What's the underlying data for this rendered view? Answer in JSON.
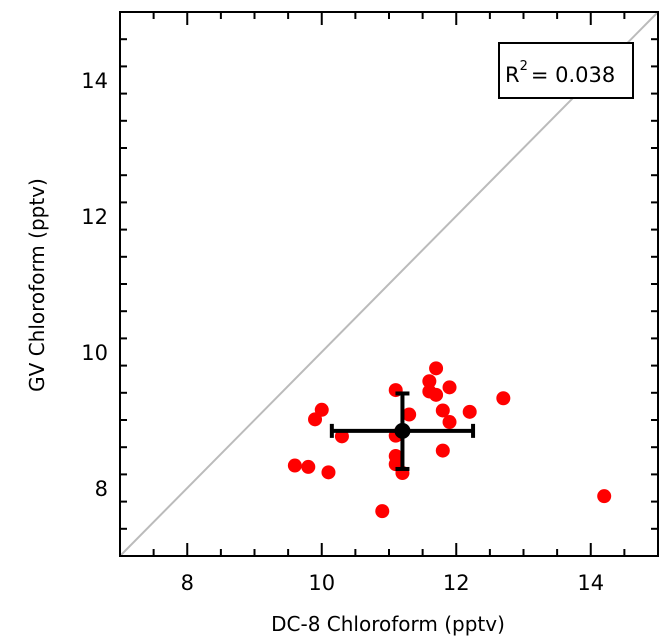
{
  "chart_data": {
    "type": "scatter",
    "xlabel": "DC-8 Chloroform (pptv)",
    "ylabel": "GV Chloroform (pptv)",
    "xlim": [
      7,
      15
    ],
    "ylim": [
      7,
      15
    ],
    "xticks": [
      8,
      10,
      12,
      14
    ],
    "yticks": [
      8,
      10,
      12,
      14
    ],
    "x_minor_step": 0.5,
    "y_minor_step": 0.4,
    "grid": false,
    "one_to_one_line": true,
    "annotation": {
      "r_text": "R",
      "r_exp": "2",
      "r_value": "= 0.038",
      "position": "top-right"
    },
    "series": [
      {
        "marker": "circle",
        "color": "#ff0000",
        "points": [
          [
            9.6,
            8.33
          ],
          [
            9.8,
            8.31
          ],
          [
            9.9,
            9.01
          ],
          [
            10.0,
            9.15
          ],
          [
            10.1,
            8.23
          ],
          [
            10.3,
            8.76
          ],
          [
            10.9,
            7.66
          ],
          [
            11.1,
            9.44
          ],
          [
            11.1,
            8.77
          ],
          [
            11.1,
            8.47
          ],
          [
            11.1,
            8.35
          ],
          [
            11.2,
            8.22
          ],
          [
            11.3,
            9.08
          ],
          [
            11.6,
            9.57
          ],
          [
            11.6,
            9.42
          ],
          [
            11.7,
            9.76
          ],
          [
            11.7,
            9.37
          ],
          [
            11.8,
            9.14
          ],
          [
            11.8,
            8.55
          ],
          [
            11.9,
            9.48
          ],
          [
            11.9,
            8.97
          ],
          [
            12.2,
            9.12
          ],
          [
            12.7,
            9.32
          ],
          [
            14.2,
            7.88
          ]
        ]
      }
    ],
    "mean": {
      "x": 11.2,
      "y": 8.84,
      "x_err": [
        10.15,
        12.25
      ],
      "y_err": [
        8.28,
        9.39
      ],
      "color": "#000000"
    },
    "colors": {
      "points": "#ff0000",
      "mean": "#000000",
      "diagonal": "#bbbbbb",
      "frame": "#000000"
    }
  }
}
